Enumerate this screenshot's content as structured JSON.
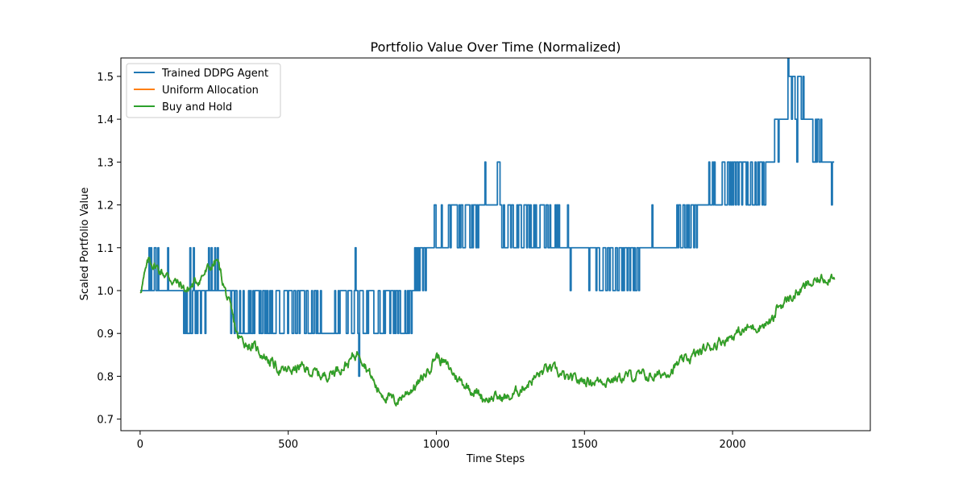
{
  "chart_data": {
    "type": "line",
    "title": "Portfolio Value Over Time (Normalized)",
    "xlabel": "Time Steps",
    "ylabel": "Scaled Portfolio Value",
    "xlim": [
      -65,
      2465
    ],
    "ylim": [
      0.673,
      1.543
    ],
    "xticks": [
      0,
      500,
      1000,
      1500,
      2000
    ],
    "yticks": [
      0.7,
      0.8,
      0.9,
      1.0,
      1.1,
      1.2,
      1.3,
      1.4,
      1.5
    ],
    "ytick_labels": [
      "0.7",
      "0.8",
      "0.9",
      "1.0",
      "1.1",
      "1.2",
      "1.3",
      "1.4",
      "1.5"
    ],
    "grid": false,
    "legend_position": "upper left",
    "series": [
      {
        "name": "Trained DDPG Agent",
        "color": "#1f77b4",
        "style": "step-noisy",
        "x": [
          0,
          60,
          120,
          200,
          260,
          300,
          360,
          420,
          500,
          560,
          620,
          680,
          740,
          800,
          900,
          940,
          1000,
          1100,
          1200,
          1210,
          1220,
          1300,
          1400,
          1500,
          1600,
          1700,
          1780,
          1850,
          1900,
          2000,
          2100,
          2140,
          2180,
          2230,
          2280,
          2320,
          2345
        ],
        "y": [
          1.0,
          1.05,
          1.0,
          0.95,
          1.05,
          0.95,
          0.95,
          0.95,
          0.95,
          0.95,
          0.9,
          0.95,
          0.95,
          0.95,
          0.95,
          1.05,
          1.15,
          1.15,
          1.2,
          1.3,
          1.15,
          1.15,
          1.15,
          1.1,
          1.05,
          1.1,
          1.1,
          1.15,
          1.2,
          1.25,
          1.25,
          1.35,
          1.45,
          1.45,
          1.35,
          1.3,
          1.25
        ]
      },
      {
        "name": "Uniform Allocation",
        "color": "#ff7f0e",
        "style": "hidden-behind",
        "x": [
          0,
          30,
          80,
          160,
          260,
          330,
          400,
          480,
          540,
          620,
          700,
          740,
          800,
          860,
          950,
          1000,
          1080,
          1160,
          1250,
          1300,
          1380,
          1450,
          1550,
          1650,
          1750,
          1850,
          1950,
          2050,
          2140,
          2150,
          2250,
          2345
        ],
        "y": [
          1.0,
          1.07,
          1.04,
          1.0,
          1.07,
          0.89,
          0.86,
          0.81,
          0.82,
          0.8,
          0.83,
          0.86,
          0.77,
          0.74,
          0.79,
          0.85,
          0.79,
          0.75,
          0.75,
          0.78,
          0.82,
          0.79,
          0.79,
          0.8,
          0.8,
          0.84,
          0.88,
          0.91,
          0.93,
          0.96,
          1.01,
          1.04
        ]
      },
      {
        "name": "Buy and Hold",
        "color": "#2ca02c",
        "style": "noisy-line",
        "x": [
          0,
          30,
          80,
          160,
          260,
          330,
          400,
          480,
          540,
          620,
          700,
          740,
          800,
          860,
          950,
          1000,
          1080,
          1160,
          1250,
          1300,
          1380,
          1450,
          1550,
          1650,
          1750,
          1850,
          1950,
          2050,
          2140,
          2150,
          2250,
          2345
        ],
        "y": [
          1.0,
          1.07,
          1.04,
          1.0,
          1.07,
          0.89,
          0.86,
          0.81,
          0.82,
          0.8,
          0.83,
          0.86,
          0.77,
          0.74,
          0.79,
          0.85,
          0.79,
          0.75,
          0.75,
          0.78,
          0.82,
          0.79,
          0.79,
          0.8,
          0.8,
          0.84,
          0.88,
          0.91,
          0.93,
          0.96,
          1.01,
          1.04
        ]
      }
    ]
  }
}
